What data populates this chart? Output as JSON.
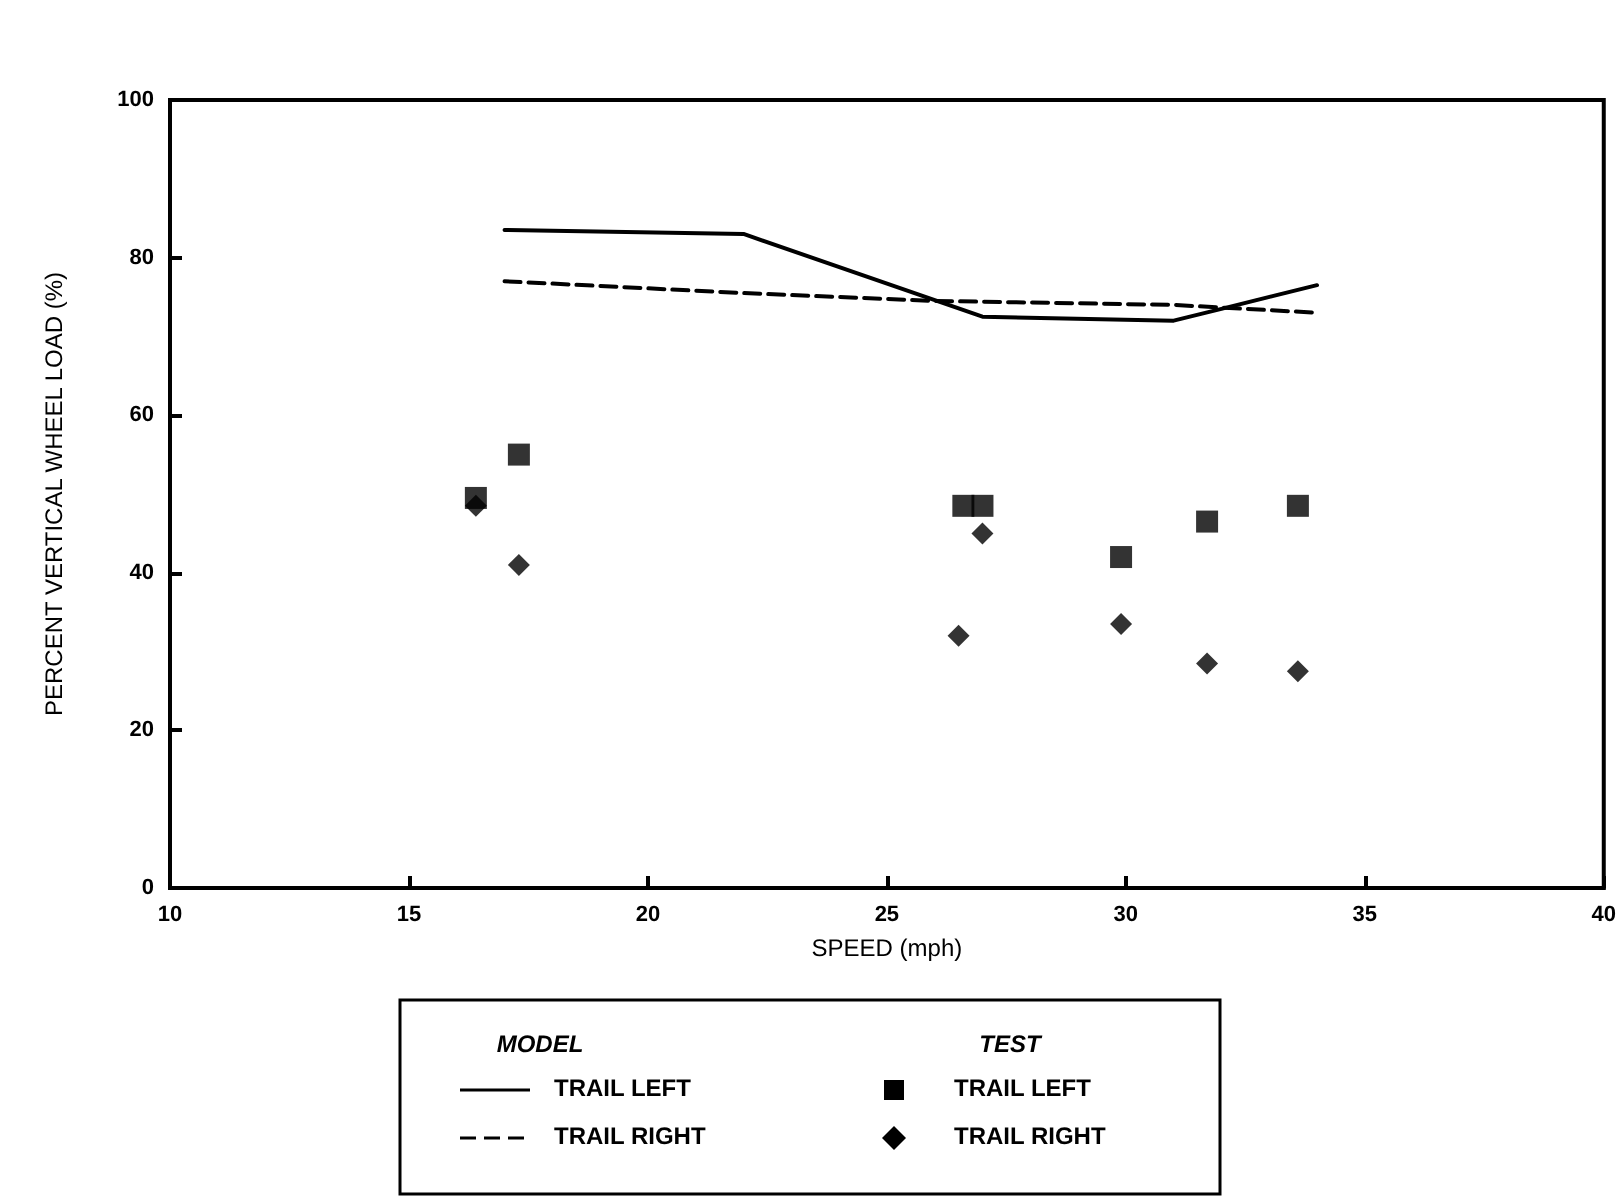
{
  "chart_data": {
    "type": "line",
    "xlabel": "SPEED (mph)",
    "ylabel": "PERCENT VERTICAL WHEEL LOAD (%)",
    "xlim": [
      10,
      40
    ],
    "xticks": [
      10,
      15,
      20,
      25,
      30,
      35,
      40
    ],
    "ylim": [
      0,
      100
    ],
    "yticks": [
      0,
      20,
      40,
      60,
      80,
      100
    ],
    "grid": false,
    "legend": "bottom",
    "annotations": [
      "MODEL",
      "TEST"
    ],
    "series": [
      {
        "name": "TRAIL LEFT",
        "color": "#000000",
        "line_style": "solid",
        "marker": "none",
        "x": [
          17,
          22,
          27,
          31,
          32,
          34
        ],
        "values": [
          83.5,
          83,
          72.5,
          72,
          73.5,
          76.5
        ]
      },
      {
        "name": "TRAIL RIGHT",
        "color": "#000000",
        "line_style": "dashed",
        "marker": "none",
        "x": [
          17,
          22,
          26,
          31,
          34
        ],
        "values": [
          77,
          75.5,
          74.5,
          74,
          73
        ]
      },
      {
        "type": "scatter",
        "name": "TRAIL LEFT",
        "color": "#000000",
        "marker": "square",
        "x": [
          16.4,
          17.3,
          26.6,
          27.0,
          29.9,
          31.7,
          33.6
        ],
        "values": [
          49.5,
          55,
          48.5,
          48.5,
          42,
          46.5,
          48.5
        ]
      },
      {
        "type": "scatter",
        "name": "TRAIL RIGHT",
        "color": "#000000",
        "marker": "diamond",
        "x": [
          16.4,
          17.3,
          26.5,
          27.0,
          29.9,
          31.7,
          33.6
        ],
        "values": [
          48.5,
          41,
          32,
          45,
          33.5,
          28.5,
          27.5
        ]
      }
    ]
  }
}
